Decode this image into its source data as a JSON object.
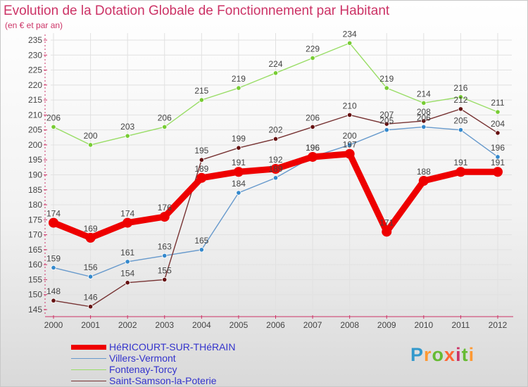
{
  "header": {
    "title": "Evolution de la Dotation Globale de Fonctionnement par Habitant",
    "subtitle": "(en € et par an)"
  },
  "brand": {
    "name": "Proxiti",
    "letter_colors": [
      "#3399cc",
      "#ff9933",
      "#66bb33",
      "#ff6633",
      "#cc3366",
      "#66bb33",
      "#ff9933"
    ]
  },
  "chart_data": {
    "type": "line",
    "title": "Evolution de la Dotation Globale de Fonctionnement par Habitant",
    "subtitle": "(en € et par an)",
    "xlabel": "",
    "ylabel": "",
    "x": [
      "2000",
      "2001",
      "2002",
      "2003",
      "2004",
      "2005",
      "2006",
      "2007",
      "2008",
      "2009",
      "2010",
      "2011",
      "2012"
    ],
    "ylim": [
      145,
      235
    ],
    "yticks": [
      145,
      150,
      155,
      160,
      165,
      170,
      175,
      180,
      185,
      190,
      195,
      200,
      205,
      210,
      215,
      220,
      225,
      230,
      235
    ],
    "grid": true,
    "legend_position": "bottom-left",
    "series": [
      {
        "name": "HéRICOURT-SUR-THéRAIN",
        "color": "#ee0000",
        "emphasis": "thick",
        "values": [
          174,
          169,
          174,
          176,
          189,
          191,
          192,
          196,
          197,
          171,
          188,
          191,
          191
        ],
        "labels": [
          "174",
          "169",
          "174",
          "176",
          "189",
          "191",
          "192",
          "196",
          "197",
          "171",
          "188",
          "191",
          "191"
        ]
      },
      {
        "name": "Villers-Vermont",
        "color": "#6699cc",
        "point_color": "#3388cc",
        "emphasis": "thin",
        "values": [
          159,
          156,
          161,
          163,
          165,
          184,
          189,
          196,
          200,
          205,
          206,
          205,
          196
        ],
        "labels": [
          "159",
          "156",
          "161",
          "163",
          "165",
          "184",
          "189",
          "196",
          "200",
          "205",
          "206",
          "205",
          "196"
        ]
      },
      {
        "name": "Fontenay-Torcy",
        "color": "#99dd66",
        "point_color": "#77cc33",
        "emphasis": "thin",
        "values": [
          206,
          200,
          203,
          206,
          215,
          219,
          224,
          229,
          234,
          219,
          214,
          216,
          211
        ],
        "labels": [
          "206",
          "200",
          "203",
          "206",
          "215",
          "219",
          "224",
          "229",
          "234",
          "219",
          "214",
          "216",
          "211"
        ]
      },
      {
        "name": "Saint-Samson-la-Poterie",
        "color": "#773333",
        "point_color": "#661111",
        "emphasis": "thin",
        "values": [
          148,
          146,
          154,
          155,
          195,
          199,
          202,
          206,
          210,
          207,
          208,
          212,
          204
        ],
        "labels": [
          "148",
          "146",
          "154",
          "155",
          "195",
          "199",
          "202",
          "206",
          "210",
          "207",
          "208",
          "212",
          "204"
        ]
      }
    ]
  }
}
